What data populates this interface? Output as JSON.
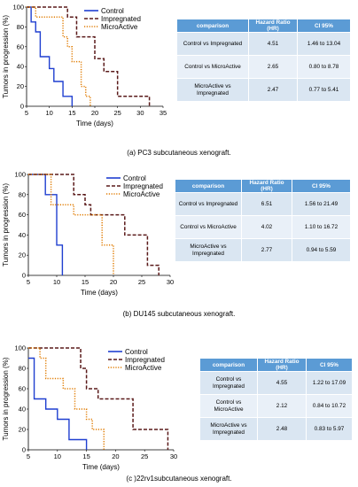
{
  "chart_data": [
    {
      "type": "line",
      "step": true,
      "caption": "(a) PC3 subcutaneous xenograft.",
      "xlabel": "Time (days)",
      "ylabel": "Tumors in progression (%)",
      "xlim": [
        5,
        35
      ],
      "ylim": [
        0,
        100
      ],
      "xticks": [
        5,
        10,
        15,
        20,
        25,
        30,
        35
      ],
      "yticks": [
        0,
        20,
        40,
        60,
        80,
        100
      ],
      "legend_position": "top-left",
      "series": [
        {
          "name": "Control",
          "color": "#1f3fd0",
          "style": "solid",
          "x": [
            5,
            6,
            7,
            8,
            10,
            11,
            13,
            15
          ],
          "y": [
            100,
            85,
            75,
            50,
            38,
            25,
            10,
            0
          ]
        },
        {
          "name": "Impregnated",
          "color": "#5a1a1a",
          "style": "dashed",
          "x": [
            5,
            9,
            13,
            14,
            16,
            20,
            22,
            25,
            32,
            32
          ],
          "y": [
            100,
            100,
            100,
            90,
            70,
            48,
            35,
            10,
            10,
            0
          ]
        },
        {
          "name": "MicroActive",
          "color": "#e07b00",
          "style": "dotted",
          "x": [
            5,
            7,
            13,
            14,
            15,
            17,
            18,
            19
          ],
          "y": [
            100,
            90,
            70,
            60,
            45,
            20,
            10,
            0
          ]
        }
      ],
      "table": {
        "headers": [
          "comparison",
          "Hazard Ratio (HR)",
          "CI 95%"
        ],
        "rows": [
          [
            "Control vs Impregnated",
            "4.51",
            "1.46 to 13.04"
          ],
          [
            "Control vs MicroActive",
            "2.65",
            "0.80 to 8.78"
          ],
          [
            "MicroActive vs Impregnated",
            "2.47",
            "0.77 to 5.41"
          ]
        ]
      }
    },
    {
      "type": "line",
      "step": true,
      "caption": "(b) DU145 subcutaneous xenograft.",
      "xlabel": "Time (days)",
      "ylabel": "Tumors in progression (%)",
      "xlim": [
        5,
        30
      ],
      "ylim": [
        0,
        100
      ],
      "xticks": [
        5,
        10,
        15,
        20,
        25,
        30
      ],
      "yticks": [
        0,
        20,
        40,
        60,
        80,
        100
      ],
      "legend_position": "top-right",
      "series": [
        {
          "name": "Control",
          "color": "#1f3fd0",
          "style": "solid",
          "x": [
            5,
            7,
            8,
            10,
            11
          ],
          "y": [
            100,
            100,
            80,
            30,
            0
          ]
        },
        {
          "name": "Impregnated",
          "color": "#5a1a1a",
          "style": "dashed",
          "x": [
            5,
            11,
            13,
            15,
            16,
            22,
            26,
            28
          ],
          "y": [
            100,
            100,
            80,
            70,
            60,
            40,
            10,
            0
          ]
        },
        {
          "name": "MicroActive",
          "color": "#e07b00",
          "style": "dotted",
          "x": [
            5,
            9,
            13,
            18,
            20
          ],
          "y": [
            100,
            70,
            60,
            30,
            0
          ]
        }
      ],
      "table": {
        "headers": [
          "comparison",
          "Hazard Ratio (HR)",
          "CI 95%"
        ],
        "rows": [
          [
            "Control vs Impregnated",
            "6.51",
            "1.56 to 21.49"
          ],
          [
            "Control vs MicroActive",
            "4.02",
            "1.10 to 16.72"
          ],
          [
            "MicroActive vs Impregnated",
            "2.77",
            "0.94 to 5.59"
          ]
        ]
      }
    },
    {
      "type": "line",
      "step": true,
      "caption": "(c )22rv1subcutaneous xenograft.",
      "xlabel": "Time (days)",
      "ylabel": "Tumors in progression (%)",
      "xlim": [
        5,
        30
      ],
      "ylim": [
        0,
        100
      ],
      "xticks": [
        5,
        10,
        15,
        20,
        25,
        30
      ],
      "yticks": [
        0,
        20,
        40,
        60,
        80,
        100
      ],
      "legend_position": "top-right",
      "series": [
        {
          "name": "Control",
          "color": "#1f3fd0",
          "style": "solid",
          "x": [
            5,
            6,
            8,
            10,
            12,
            15
          ],
          "y": [
            90,
            50,
            40,
            30,
            10,
            0
          ]
        },
        {
          "name": "Impregnated",
          "color": "#5a1a1a",
          "style": "dashed",
          "x": [
            5,
            12,
            14,
            15,
            17,
            23,
            29
          ],
          "y": [
            100,
            100,
            80,
            60,
            50,
            20,
            0
          ]
        },
        {
          "name": "MicroActive",
          "color": "#e07b00",
          "style": "dotted",
          "x": [
            5,
            7,
            8,
            11,
            13,
            15,
            16,
            18
          ],
          "y": [
            100,
            90,
            70,
            60,
            40,
            30,
            20,
            0
          ]
        }
      ],
      "table": {
        "headers": [
          "comparison",
          "Hazard Ratio (HR)",
          "CI 95%"
        ],
        "rows": [
          [
            "Control vs Impregnated",
            "4.55",
            "1.22 to 17.09"
          ],
          [
            "Control vs MicroActive",
            "2.12",
            "0.84 to 10.72"
          ],
          [
            "MicroActive vs Impregnated",
            "2.48",
            "0.83 to 5.97"
          ]
        ]
      }
    }
  ]
}
